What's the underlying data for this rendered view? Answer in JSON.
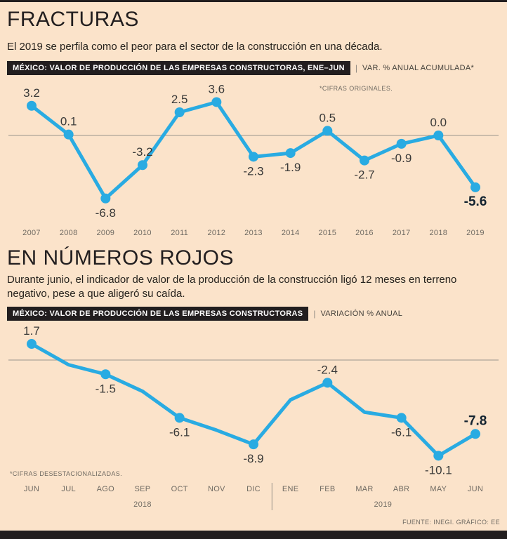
{
  "page": {
    "title": "FRACTURAS",
    "subtitle": "El 2019 se perfila como el peor para el sector de la construcción en una década.",
    "section2_title": "EN NÚMEROS ROJOS",
    "section2_subtitle": "Durante junio, el indicador de valor de la producción de la construcción ligó 12 meses en terreno negativo, pese a que aligeró su caída.",
    "header_separator": "|",
    "footer": "FUENTE: INEGI. GRÁFICO: EE"
  },
  "colors": {
    "background": "#fbe3ca",
    "line": "#29abe2",
    "dark": "#221e1f",
    "label": "#3a3a39",
    "emphasis": "#132330",
    "muted": "#6f6a62",
    "zero_line": "#9a958c"
  },
  "chart_data": [
    {
      "type": "line",
      "title": "MÉXICO: VALOR DE PRODUCCIÓN DE LAS EMPRESAS CONSTRUCTORAS, ENE–JUN",
      "legend": "VAR. % ANUAL ACUMULADA*",
      "note": "*CIFRAS ORIGINALES.",
      "xlabel": "",
      "ylabel": "",
      "ylim": [
        -8,
        4
      ],
      "grid": false,
      "zero_line": true,
      "legend_position": "top-right",
      "categories": [
        "2007",
        "2008",
        "2009",
        "2010",
        "2011",
        "2012",
        "2013",
        "2014",
        "2015",
        "2016",
        "2017",
        "2018",
        "2019"
      ],
      "values": [
        3.2,
        0.1,
        -6.8,
        -3.2,
        2.5,
        3.6,
        -2.3,
        -1.9,
        0.5,
        -2.7,
        -0.9,
        0.0,
        -5.6
      ],
      "labels": [
        "3.2",
        "0.1",
        "-6.8",
        "-3.2",
        "2.5",
        "3.6",
        "-2.3",
        "-1.9",
        "0.5",
        "-2.7",
        "-0.9",
        "0.0",
        "-5.6"
      ],
      "label_side": [
        "above",
        "above",
        "below",
        "above",
        "above",
        "above",
        "below",
        "below",
        "above",
        "below",
        "below",
        "above",
        "below"
      ],
      "markers": [
        true,
        true,
        true,
        true,
        true,
        true,
        true,
        true,
        true,
        true,
        true,
        true,
        true
      ],
      "emphasis_index": 12
    },
    {
      "type": "line",
      "title": "MÉXICO: VALOR DE PRODUCCIÓN DE LAS EMPRESAS CONSTRUCTORAS",
      "legend": "VARIACIÓN % ANUAL",
      "note": "*CIFRAS DESESTACIONALIZADAS.",
      "xlabel": "",
      "ylabel": "",
      "ylim": [
        -11,
        3
      ],
      "grid": false,
      "zero_line": true,
      "categories": [
        "JUN",
        "JUL",
        "AGO",
        "SEP",
        "OCT",
        "NOV",
        "DIC",
        "ENE",
        "FEB",
        "MAR",
        "ABR",
        "MAY",
        "JUN"
      ],
      "year_groups": [
        {
          "label": "2018",
          "from": 0,
          "to": 6
        },
        {
          "label": "2019",
          "from": 7,
          "to": 12
        }
      ],
      "values": [
        1.7,
        -0.5,
        -1.5,
        -3.3,
        -6.1,
        -7.4,
        -8.9,
        -4.2,
        -2.4,
        -5.5,
        -6.1,
        -10.1,
        -7.8
      ],
      "estimated_indices": [
        1,
        3,
        5,
        7,
        9
      ],
      "labels": [
        "1.7",
        null,
        "-1.5",
        null,
        "-6.1",
        null,
        "-8.9",
        null,
        "-2.4",
        null,
        "-6.1",
        "-10.1",
        "-7.8"
      ],
      "label_side": [
        "above",
        null,
        "below",
        null,
        "below",
        null,
        "below",
        null,
        "above",
        null,
        "below",
        "below",
        "above"
      ],
      "markers": [
        true,
        false,
        true,
        false,
        true,
        false,
        true,
        false,
        true,
        false,
        true,
        true,
        true
      ],
      "emphasis_index": 12
    }
  ]
}
